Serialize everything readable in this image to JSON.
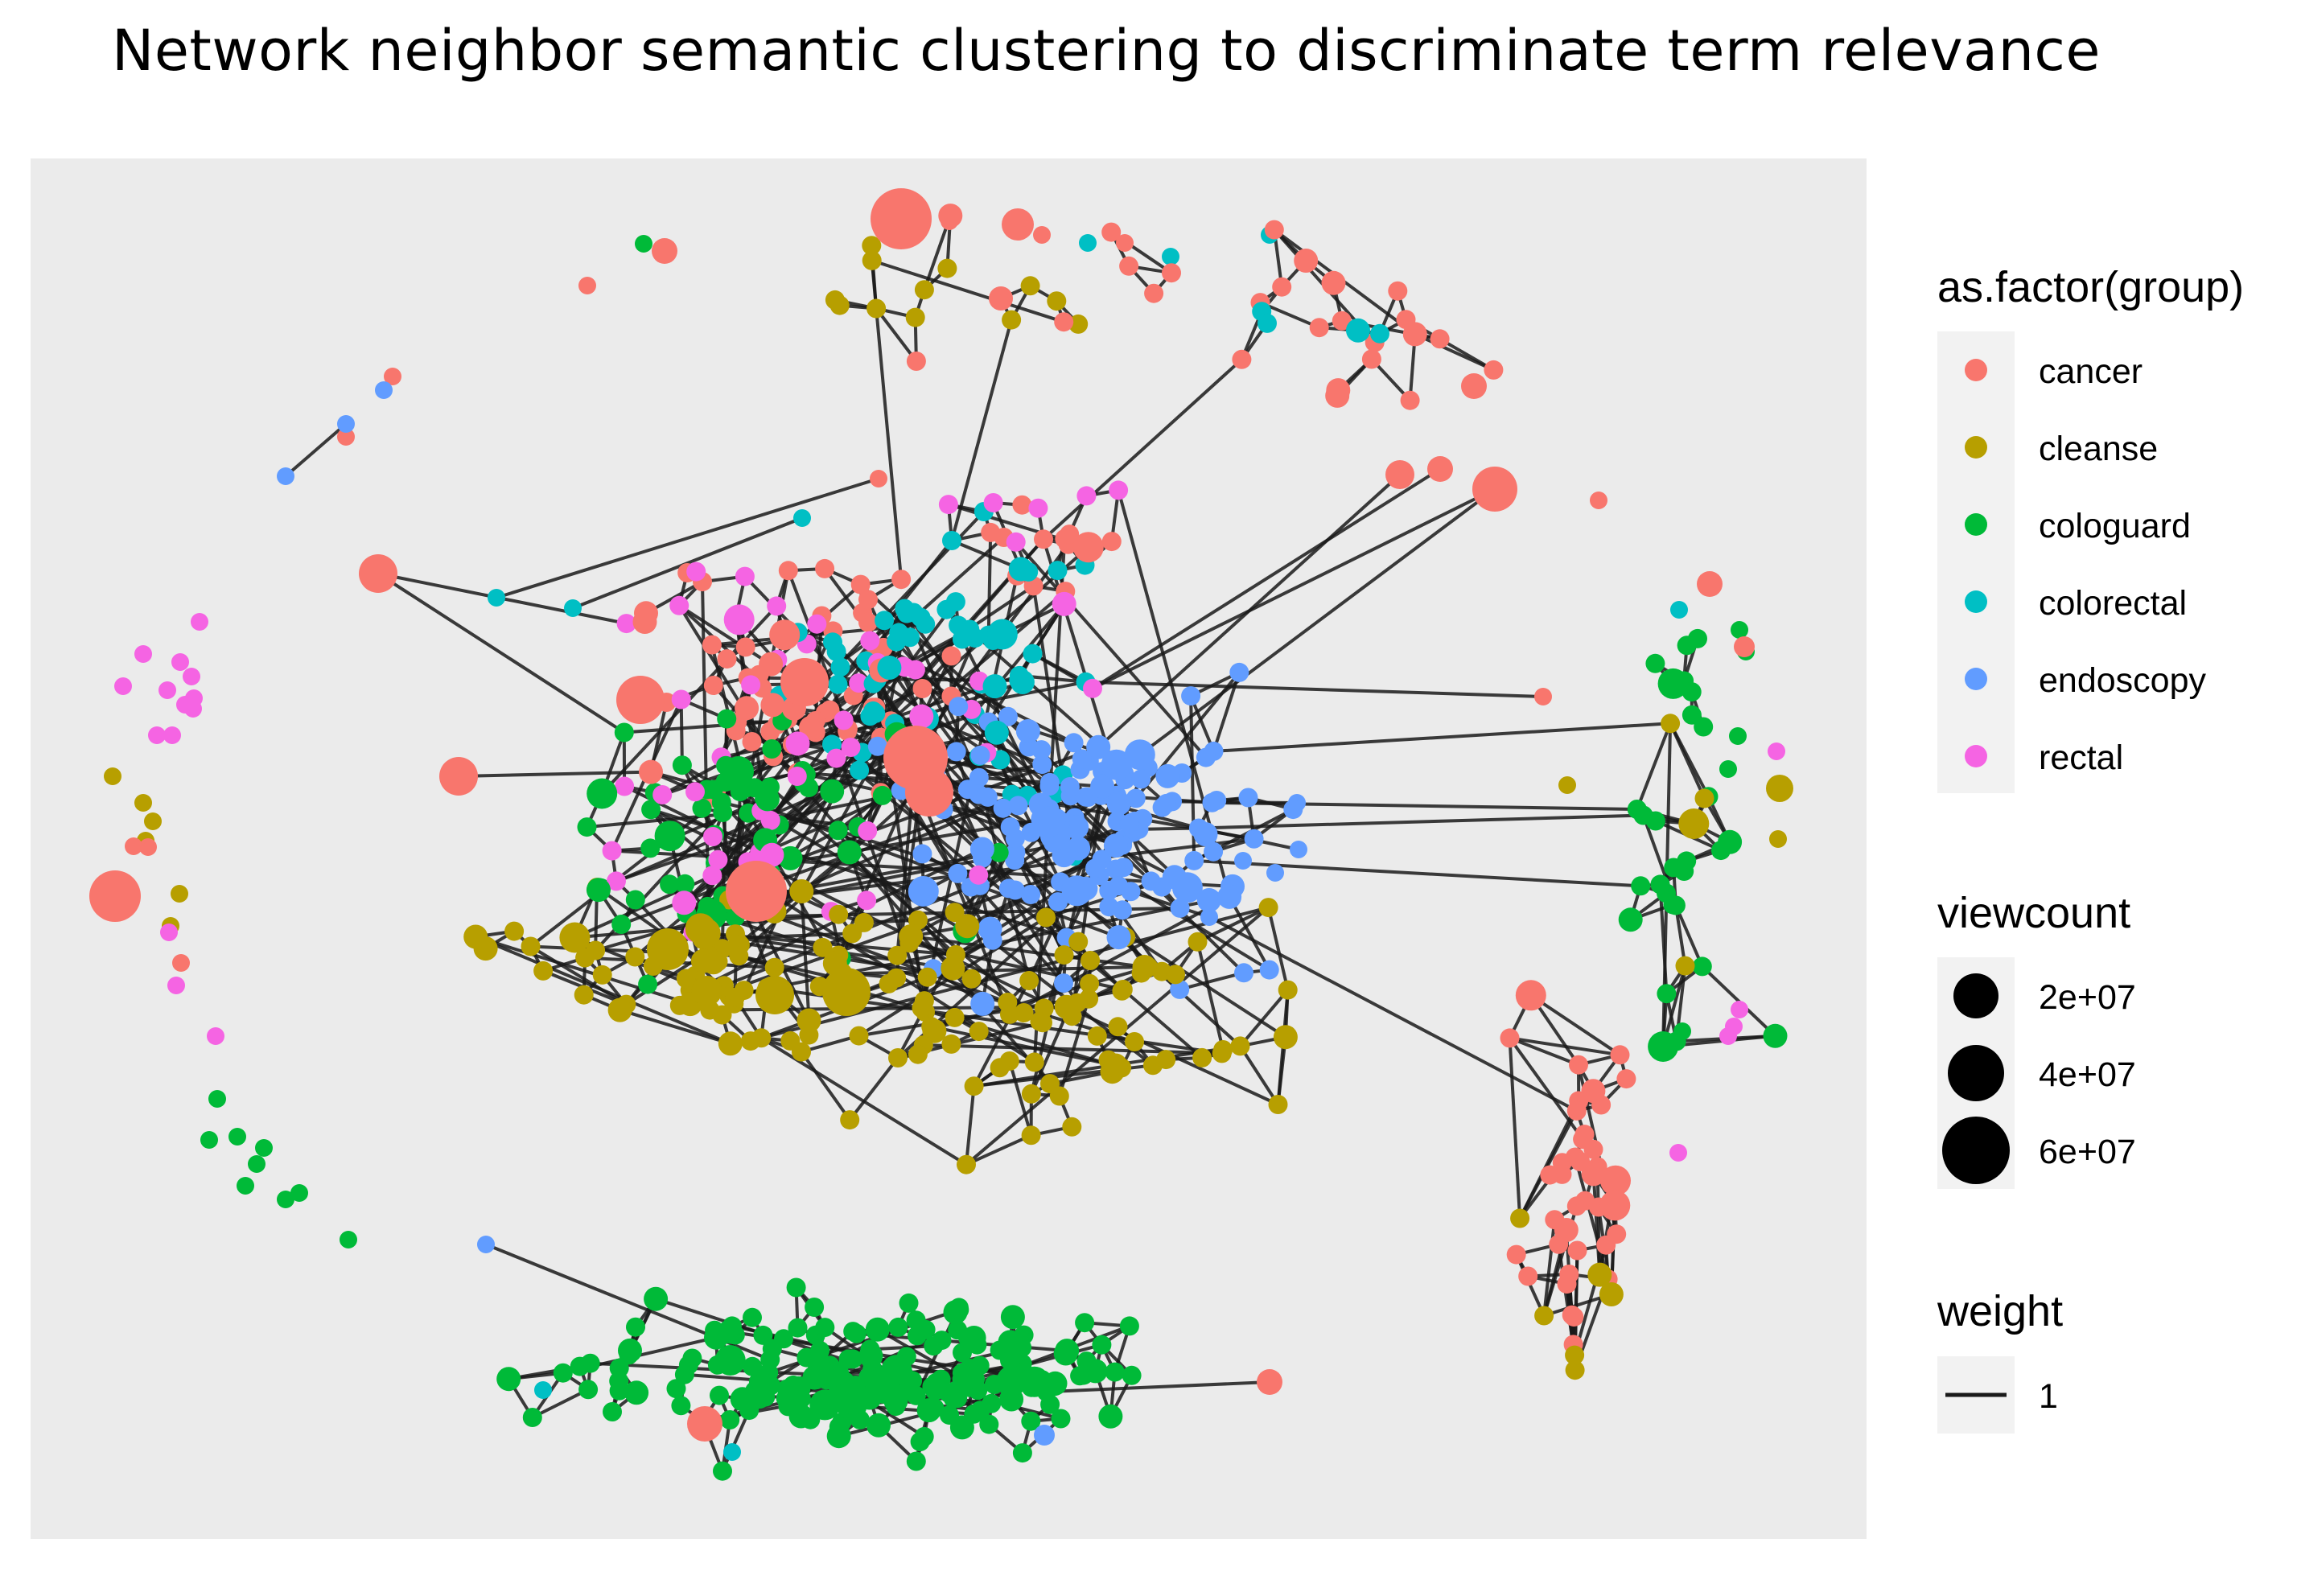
{
  "title": "Network neighbor semantic clustering to discriminate term relevance",
  "colors": {
    "panel_background": "#EBEBEB",
    "edge": "#1A1A1A",
    "legend_key_background": "#F2F2F2"
  },
  "legend": {
    "group": {
      "title": "as.factor(group)",
      "items": [
        {
          "label": "cancer",
          "color": "#F8766D"
        },
        {
          "label": "cleanse",
          "color": "#B79F00"
        },
        {
          "label": "cologuard",
          "color": "#00BA38"
        },
        {
          "label": "colorectal",
          "color": "#00BFC4"
        },
        {
          "label": "endoscopy",
          "color": "#619CFF"
        },
        {
          "label": "rectal",
          "color": "#F564E3"
        }
      ]
    },
    "viewcount": {
      "title": "viewcount",
      "items": [
        {
          "label": "2e+07",
          "value": 20000000
        },
        {
          "label": "4e+07",
          "value": 40000000
        },
        {
          "label": "6e+07",
          "value": 60000000
        }
      ]
    },
    "weight": {
      "title": "weight",
      "items": [
        {
          "label": "1",
          "value": 1
        }
      ]
    }
  }
}
